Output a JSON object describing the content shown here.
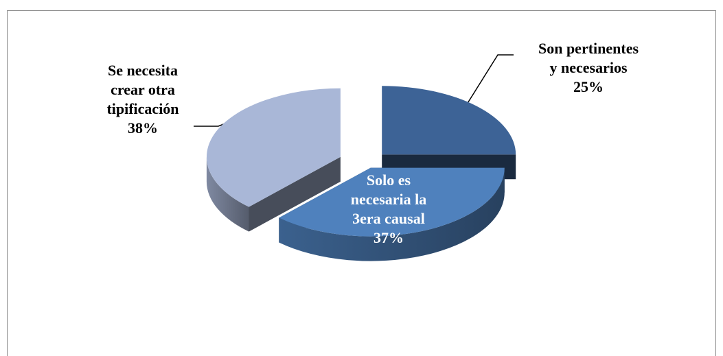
{
  "chart_data": {
    "type": "pie3d",
    "categories": [
      "Son pertinentes y necesarios",
      "Solo es necesaria la 3era causal",
      "Se necesita crear otra tipificación"
    ],
    "values": [
      25,
      37,
      38
    ],
    "value_labels": [
      "25%",
      "37%",
      "38%"
    ],
    "colors": [
      "#3d6396",
      "#4f81bd",
      "#a9b7d7"
    ]
  }
}
